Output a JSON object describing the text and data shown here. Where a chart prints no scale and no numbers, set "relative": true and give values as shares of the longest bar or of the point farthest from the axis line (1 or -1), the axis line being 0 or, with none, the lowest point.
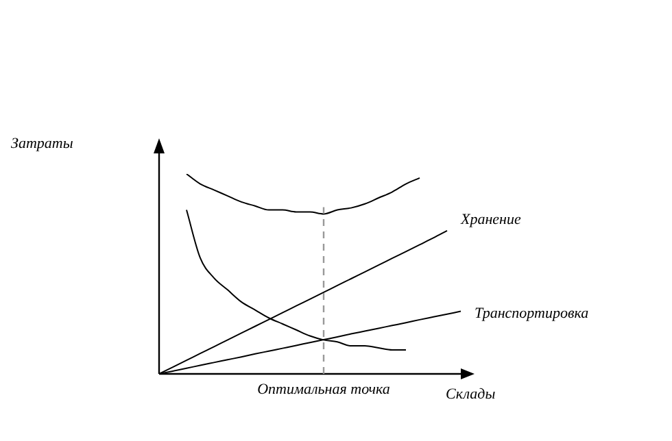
{
  "chart_data": {
    "type": "line",
    "relative": true,
    "xlabel": "Склады",
    "annotations": [
      "Затраты",
      "Оптимальная точка"
    ],
    "categories": [
      null,
      null,
      null,
      null,
      null,
      null,
      null,
      null,
      null,
      null,
      null,
      null,
      null,
      null,
      null,
      null,
      null,
      null,
      null,
      null,
      null,
      null,
      null
    ],
    "series": [
      {
        "color": "#000000",
        "values": [
          null,
          null,
          1.0,
          0.95,
          0.92,
          0.89,
          0.86,
          0.84,
          0.82,
          0.82,
          0.81,
          0.81,
          0.8,
          0.82,
          0.83,
          0.85,
          0.88,
          0.91,
          0.95,
          0.98,
          null,
          null,
          null
        ]
      },
      {
        "color": "#000000",
        "values": [
          null,
          null,
          0.82,
          0.58,
          0.48,
          0.42,
          0.36,
          0.32,
          0.28,
          0.25,
          0.22,
          0.19,
          0.17,
          0.16,
          0.14,
          0.14,
          0.13,
          0.12,
          0.12,
          null,
          null,
          null,
          null
        ]
      },
      {
        "name": "Хранение",
        "color": "#000000",
        "values": [
          0,
          0.034,
          0.068,
          0.102,
          0.136,
          0.17,
          0.204,
          0.238,
          0.272,
          0.306,
          0.34,
          0.374,
          0.408,
          0.442,
          0.476,
          0.51,
          0.544,
          0.578,
          0.612,
          0.646,
          0.68,
          0.716,
          null
        ]
      },
      {
        "name": "Транспортировка",
        "color": "#000000",
        "values": [
          0,
          0.014,
          0.028,
          0.043,
          0.057,
          0.071,
          0.085,
          0.1,
          0.114,
          0.128,
          0.142,
          0.157,
          0.171,
          0.185,
          0.2,
          0.214,
          0.228,
          0.242,
          0.256,
          0.271,
          0.285,
          0.299,
          0.313
        ]
      }
    ],
    "legend": false,
    "marker": "none",
    "line_style": "solid"
  }
}
